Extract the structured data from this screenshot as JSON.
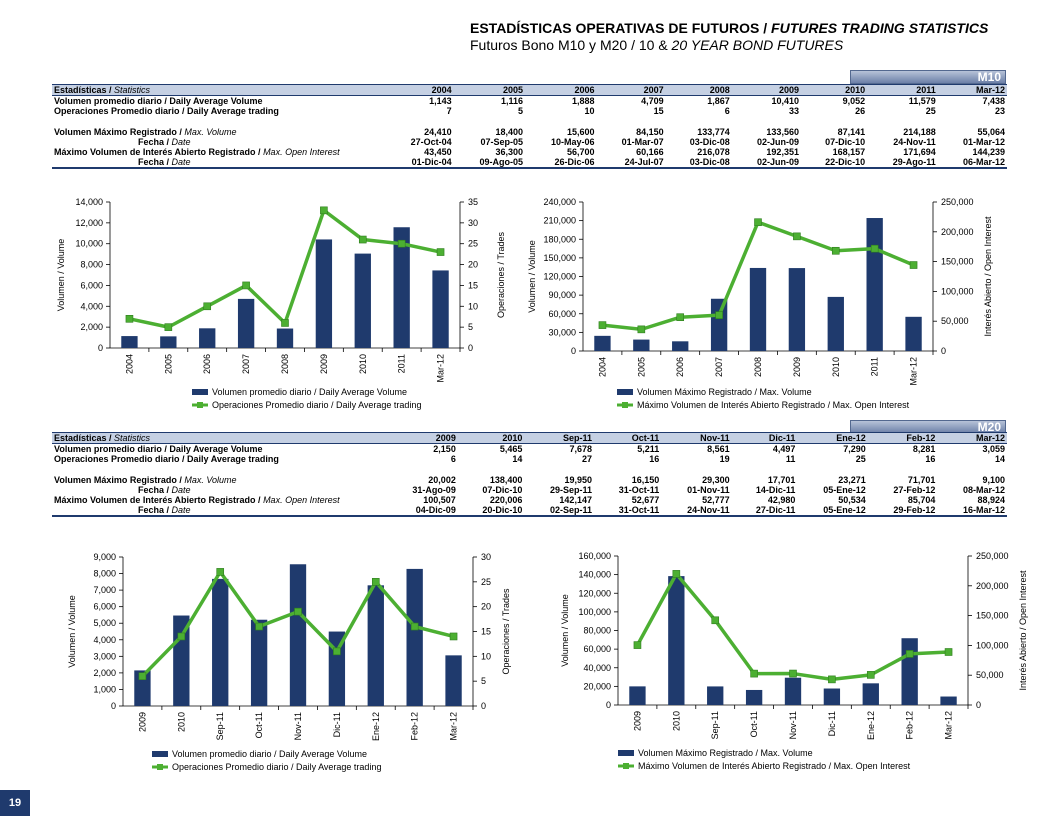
{
  "header": {
    "title_es": "ESTADÍSTICAS OPERATIVAS DE FUTUROS /",
    "title_en": "FUTURES TRADING STATISTICS",
    "subtitle_es": "Futuros Bono M10 y M20  / 10 &",
    "subtitle_en": "20 YEAR BOND FUTURES"
  },
  "page_number": "19",
  "m10": {
    "tag": "M10",
    "stats_label_es": "Estadísticas /",
    "stats_label_en": "Statistics",
    "columns": [
      "2004",
      "2005",
      "2006",
      "2007",
      "2008",
      "2009",
      "2010",
      "2011",
      "Mar-12"
    ],
    "rows_top": [
      {
        "label": "Volumen promedio diario / Daily Average Volume",
        "values": [
          "1,143",
          "1,116",
          "1,888",
          "4,709",
          "1,867",
          "10,410",
          "9,052",
          "11,579",
          "7,438"
        ]
      },
      {
        "label": "Operaciones Promedio diario / Daily Average trading",
        "values": [
          "7",
          "5",
          "10",
          "15",
          "6",
          "33",
          "26",
          "25",
          "23"
        ]
      }
    ],
    "rows_bottom": [
      {
        "label_es": "Volumen Máximo Registrado /",
        "label_en": "Max. Volume",
        "indent": false,
        "values": [
          "24,410",
          "18,400",
          "15,600",
          "84,150",
          "133,774",
          "133,560",
          "87,141",
          "214,188",
          "55,064"
        ]
      },
      {
        "label_es": "Fecha /",
        "label_en": "Date",
        "indent": true,
        "values": [
          "27-Oct-04",
          "07-Sep-05",
          "10-May-06",
          "01-Mar-07",
          "03-Dic-08",
          "02-Jun-09",
          "07-Dic-10",
          "24-Nov-11",
          "01-Mar-12"
        ]
      },
      {
        "label_es": "Máximo Volumen de Interés Abierto Registrado /",
        "label_en": "Max. Open Interest",
        "indent": false,
        "values": [
          "43,450",
          "36,300",
          "56,700",
          "60,166",
          "216,078",
          "192,351",
          "168,157",
          "171,694",
          "144,239"
        ]
      },
      {
        "label_es": "Fecha /",
        "label_en": "Date",
        "indent": true,
        "values": [
          "01-Dic-04",
          "09-Ago-05",
          "26-Dic-06",
          "24-Jul-07",
          "03-Dic-08",
          "02-Jun-09",
          "22-Dic-10",
          "29-Ago-11",
          "06-Mar-12"
        ]
      }
    ]
  },
  "m20": {
    "tag": "M20",
    "stats_label_es": "Estadísticas /",
    "stats_label_en": "Statistics",
    "columns": [
      "2009",
      "2010",
      "Sep-11",
      "Oct-11",
      "Nov-11",
      "Dic-11",
      "Ene-12",
      "Feb-12",
      "Mar-12"
    ],
    "rows_top": [
      {
        "label": "Volumen promedio diario / Daily Average Volume",
        "values": [
          "2,150",
          "5,465",
          "7,678",
          "5,211",
          "8,561",
          "4,497",
          "7,290",
          "8,281",
          "3,059"
        ]
      },
      {
        "label": "Operaciones Promedio diario / Daily Average trading",
        "values": [
          "6",
          "14",
          "27",
          "16",
          "19",
          "11",
          "25",
          "16",
          "14"
        ]
      }
    ],
    "rows_bottom": [
      {
        "label_es": "Volumen Máximo Registrado /",
        "label_en": "Max. Volume",
        "indent": false,
        "values": [
          "20,002",
          "138,400",
          "19,950",
          "16,150",
          "29,300",
          "17,701",
          "23,271",
          "71,701",
          "9,100"
        ]
      },
      {
        "label_es": "Fecha /",
        "label_en": "Date",
        "indent": true,
        "values": [
          "31-Ago-09",
          "07-Dic-10",
          "29-Sep-11",
          "31-Oct-11",
          "01-Nov-11",
          "14-Dic-11",
          "05-Ene-12",
          "27-Feb-12",
          "08-Mar-12"
        ]
      },
      {
        "label_es": "Máximo Volumen de Interés Abierto Registrado /",
        "label_en": "Max. Open Interest",
        "indent": false,
        "values": [
          "100,507",
          "220,006",
          "142,147",
          "52,677",
          "52,777",
          "42,980",
          "50,534",
          "85,704",
          "88,924"
        ]
      },
      {
        "label_es": "Fecha /",
        "label_en": "Date",
        "indent": true,
        "values": [
          "04-Dic-09",
          "20-Dic-10",
          "02-Sep-11",
          "31-Oct-11",
          "24-Nov-11",
          "27-Dic-11",
          "05-Ene-12",
          "29-Feb-12",
          "16-Mar-12"
        ]
      }
    ]
  },
  "colors": {
    "bar": "#1f3a6d",
    "line": "#4caf32",
    "header_row": "#c5d0e3",
    "tag": "#6c80a8"
  },
  "chart_data": [
    {
      "type": "bar",
      "categories": [
        "2004",
        "2005",
        "2006",
        "2007",
        "2008",
        "2009",
        "2010",
        "2011",
        "Mar-12"
      ],
      "series": [
        {
          "name": "Volumen promedio diario / Daily Average Volume",
          "type": "bar",
          "axis": "left",
          "values": [
            1143,
            1116,
            1888,
            4709,
            1867,
            10410,
            9052,
            11579,
            7438
          ]
        },
        {
          "name": "Operaciones Promedio diario / Daily Average trading",
          "type": "line",
          "axis": "right",
          "values": [
            7,
            5,
            10,
            15,
            6,
            33,
            26,
            25,
            23
          ]
        }
      ],
      "ylabel": "Volumen / Volume",
      "y2label": "Operaciones / Trades",
      "ylim": [
        0,
        14000
      ],
      "yticks": [
        "0",
        "2,000",
        "4,000",
        "6,000",
        "8,000",
        "10,000",
        "12,000",
        "14,000"
      ],
      "y2lim": [
        0,
        35
      ],
      "y2ticks": [
        "0",
        "5",
        "10",
        "15",
        "20",
        "25",
        "30",
        "35"
      ],
      "legend": "bottom"
    },
    {
      "type": "bar",
      "categories": [
        "2004",
        "2005",
        "2006",
        "2007",
        "2008",
        "2009",
        "2010",
        "2011",
        "Mar-12"
      ],
      "series": [
        {
          "name": "Volumen Máximo Registrado / Max. Volume",
          "type": "bar",
          "axis": "left",
          "values": [
            24410,
            18400,
            15600,
            84150,
            133774,
            133560,
            87141,
            214188,
            55064
          ]
        },
        {
          "name": "Máximo Volumen de Interés Abierto Registrado / Max. Open Interest",
          "type": "line",
          "axis": "right",
          "values": [
            43450,
            36300,
            56700,
            60166,
            216078,
            192351,
            168157,
            171694,
            144239
          ]
        }
      ],
      "ylabel": "Volumen / Volume",
      "y2label": "Interés Abierto / Open Interest",
      "ylim": [
        0,
        240000
      ],
      "yticks": [
        "0",
        "30,000",
        "60,000",
        "90,000",
        "120,000",
        "150,000",
        "180,000",
        "210,000",
        "240,000"
      ],
      "y2lim": [
        0,
        250000
      ],
      "y2ticks": [
        "0",
        "50,000",
        "100,000",
        "150,000",
        "200,000",
        "250,000"
      ],
      "legend": "bottom"
    },
    {
      "type": "bar",
      "categories": [
        "2009",
        "2010",
        "Sep-11",
        "Oct-11",
        "Nov-11",
        "Dic-11",
        "Ene-12",
        "Feb-12",
        "Mar-12"
      ],
      "series": [
        {
          "name": "Volumen promedio diario / Daily Average Volume",
          "type": "bar",
          "axis": "left",
          "values": [
            2150,
            5465,
            7678,
            5211,
            8561,
            4497,
            7290,
            8281,
            3059
          ]
        },
        {
          "name": "Operaciones Promedio diario / Daily Average trading",
          "type": "line",
          "axis": "right",
          "values": [
            6,
            14,
            27,
            16,
            19,
            11,
            25,
            16,
            14
          ]
        }
      ],
      "ylabel": "Volumen / Volume",
      "y2label": "Operaciones / Trades",
      "ylim": [
        0,
        9000
      ],
      "yticks": [
        "0",
        "1,000",
        "2,000",
        "3,000",
        "4,000",
        "5,000",
        "6,000",
        "7,000",
        "8,000",
        "9,000"
      ],
      "y2lim": [
        0,
        30
      ],
      "y2ticks": [
        "0",
        "5",
        "10",
        "15",
        "20",
        "25",
        "30"
      ],
      "legend": "bottom"
    },
    {
      "type": "bar",
      "categories": [
        "2009",
        "2010",
        "Sep-11",
        "Oct-11",
        "Nov-11",
        "Dic-11",
        "Ene-12",
        "Feb-12",
        "Mar-12"
      ],
      "series": [
        {
          "name": "Volumen Máximo Registrado / Max. Volume",
          "type": "bar",
          "axis": "left",
          "values": [
            20002,
            138400,
            19950,
            16150,
            29300,
            17701,
            23271,
            71701,
            9100
          ]
        },
        {
          "name": "Máximo Volumen de Interés Abierto Registrado / Max. Open Interest",
          "type": "line",
          "axis": "right",
          "values": [
            100507,
            220006,
            142147,
            52677,
            52777,
            42980,
            50534,
            85704,
            88924
          ]
        }
      ],
      "ylabel": "Volumen / Volume",
      "y2label": "Interés Abierto / Open Interest",
      "ylim": [
        0,
        160000
      ],
      "yticks": [
        "0",
        "20,000",
        "40,000",
        "60,000",
        "80,000",
        "100,000",
        "120,000",
        "140,000",
        "160,000"
      ],
      "y2lim": [
        0,
        250000
      ],
      "y2ticks": [
        "0",
        "50,000",
        "100,000",
        "150,000",
        "200,000",
        "250,000"
      ],
      "legend": "bottom"
    }
  ]
}
